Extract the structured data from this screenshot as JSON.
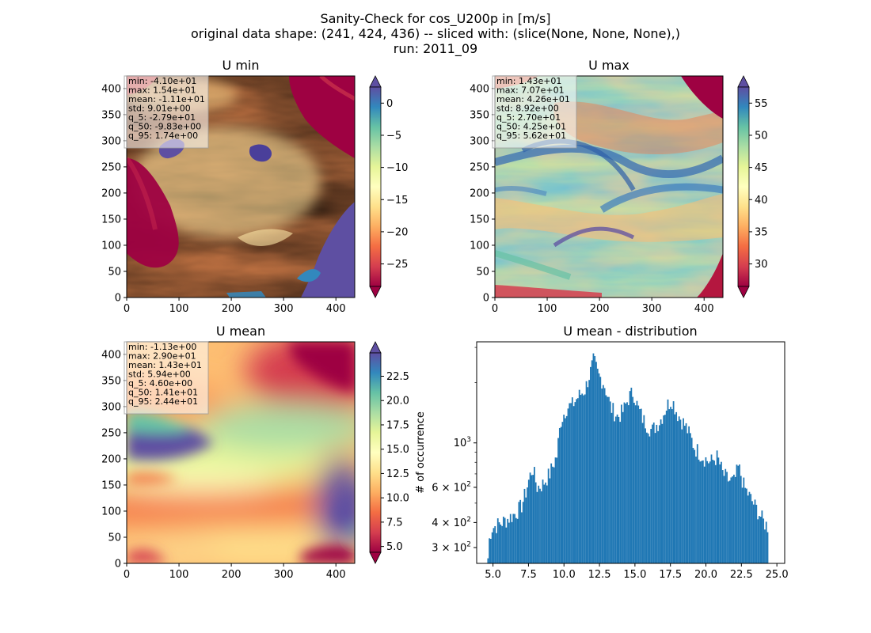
{
  "figure": {
    "title_lines": [
      "Sanity-Check for cos_U200p in [m/s]",
      "original data shape: (241, 424, 436) -- sliced with: (slice(None, None, None),)",
      "run: 2011_09"
    ]
  },
  "chart_data": [
    {
      "type": "heatmap",
      "title": "U min",
      "colormap": "Spectral",
      "xlim": [
        0,
        436
      ],
      "ylim": [
        0,
        424
      ],
      "xticks": [
        "0",
        "100",
        "200",
        "300",
        "400"
      ],
      "yticks": [
        "0",
        "50",
        "100",
        "150",
        "200",
        "250",
        "300",
        "350",
        "400"
      ],
      "colorbar": {
        "min": -28.5,
        "max": 2.5,
        "extend": "both",
        "ticks": [
          "−25",
          "−20",
          "−15",
          "−10",
          "−5",
          "0"
        ]
      },
      "stats": [
        "min: -4.10e+01",
        "max: 1.54e+01",
        "mean: -1.11e+01",
        "std: 9.01e+00",
        "q_5: -2.79e+01",
        "q_50: -9.83e+00",
        "q_95: 1.74e+00"
      ]
    },
    {
      "type": "heatmap",
      "title": "U max",
      "colormap": "Spectral",
      "xlim": [
        0,
        436
      ],
      "ylim": [
        0,
        424
      ],
      "xticks": [
        "0",
        "100",
        "200",
        "300",
        "400"
      ],
      "yticks": [
        "0",
        "50",
        "100",
        "150",
        "200",
        "250",
        "300",
        "350",
        "400"
      ],
      "colorbar": {
        "min": 26.5,
        "max": 57.5,
        "extend": "both",
        "ticks": [
          "30",
          "35",
          "40",
          "45",
          "50",
          "55"
        ]
      },
      "stats": [
        "min: 1.43e+01",
        "max: 7.07e+01",
        "mean: 4.26e+01",
        "std: 8.92e+00",
        "q_5: 2.70e+01",
        "q_50: 4.25e+01",
        "q_95: 5.62e+01"
      ]
    },
    {
      "type": "heatmap",
      "title": "U mean",
      "colormap": "Spectral",
      "xlim": [
        0,
        436
      ],
      "ylim": [
        0,
        424
      ],
      "xticks": [
        "0",
        "100",
        "200",
        "300",
        "400"
      ],
      "yticks": [
        "0",
        "50",
        "100",
        "150",
        "200",
        "250",
        "300",
        "350",
        "400"
      ],
      "colorbar": {
        "min": 4.4,
        "max": 24.9,
        "extend": "both",
        "ticks": [
          "5.0",
          "7.5",
          "10.0",
          "12.5",
          "15.0",
          "17.5",
          "20.0",
          "22.5"
        ]
      },
      "stats": [
        "min: -1.13e+00",
        "max: 2.90e+01",
        "mean: 1.43e+01",
        "std: 5.94e+00",
        "q_5: 4.60e+00",
        "q_50: 1.41e+01",
        "q_95: 2.44e+01"
      ]
    },
    {
      "type": "bar",
      "title": "U mean - distribution",
      "ylabel": "# of occurrence",
      "yscale": "log",
      "xlim": [
        3.85,
        25.55
      ],
      "ylim": [
        250,
        3200
      ],
      "xticks": [
        "5.0",
        "7.5",
        "10.0",
        "12.5",
        "15.0",
        "17.5",
        "20.0",
        "22.5",
        "25.0"
      ],
      "yticks": [
        {
          "value": 300,
          "base": "3",
          "exp": "2"
        },
        {
          "value": 400,
          "base": "4",
          "exp": "2"
        },
        {
          "value": 600,
          "base": "6",
          "exp": "2"
        },
        {
          "value": 1000,
          "base": "10",
          "exp": "3"
        }
      ],
      "bins": {
        "start": 4.6,
        "end": 24.4,
        "count": 200
      },
      "profile": [
        [
          4.6,
          280
        ],
        [
          4.75,
          330
        ],
        [
          4.9,
          375
        ],
        [
          5.2,
          385
        ],
        [
          5.6,
          400
        ],
        [
          6.0,
          415
        ],
        [
          6.5,
          440
        ],
        [
          7.0,
          480
        ],
        [
          7.3,
          560
        ],
        [
          7.6,
          680
        ],
        [
          7.8,
          750
        ],
        [
          8.1,
          600
        ],
        [
          8.5,
          620
        ],
        [
          9.0,
          700
        ],
        [
          9.5,
          860
        ],
        [
          9.8,
          1300
        ],
        [
          10.2,
          1500
        ],
        [
          10.6,
          1550
        ],
        [
          11.0,
          1700
        ],
        [
          11.5,
          1850
        ],
        [
          11.9,
          2300
        ],
        [
          12.1,
          2600
        ],
        [
          12.4,
          2200
        ],
        [
          12.8,
          2000
        ],
        [
          13.3,
          1500
        ],
        [
          13.8,
          1350
        ],
        [
          14.2,
          1450
        ],
        [
          14.6,
          1700
        ],
        [
          14.9,
          1800
        ],
        [
          15.2,
          1500
        ],
        [
          15.6,
          1300
        ],
        [
          16.2,
          1150
        ],
        [
          16.8,
          1300
        ],
        [
          17.3,
          1550
        ],
        [
          17.6,
          1650
        ],
        [
          18.0,
          1400
        ],
        [
          18.6,
          1200
        ],
        [
          19.2,
          950
        ],
        [
          19.8,
          850
        ],
        [
          20.3,
          800
        ],
        [
          20.8,
          850
        ],
        [
          21.2,
          700
        ],
        [
          21.6,
          650
        ],
        [
          22.0,
          640
        ],
        [
          22.3,
          760
        ],
        [
          22.7,
          600
        ],
        [
          23.2,
          520
        ],
        [
          23.7,
          450
        ],
        [
          24.1,
          400
        ],
        [
          24.4,
          380
        ]
      ]
    }
  ]
}
